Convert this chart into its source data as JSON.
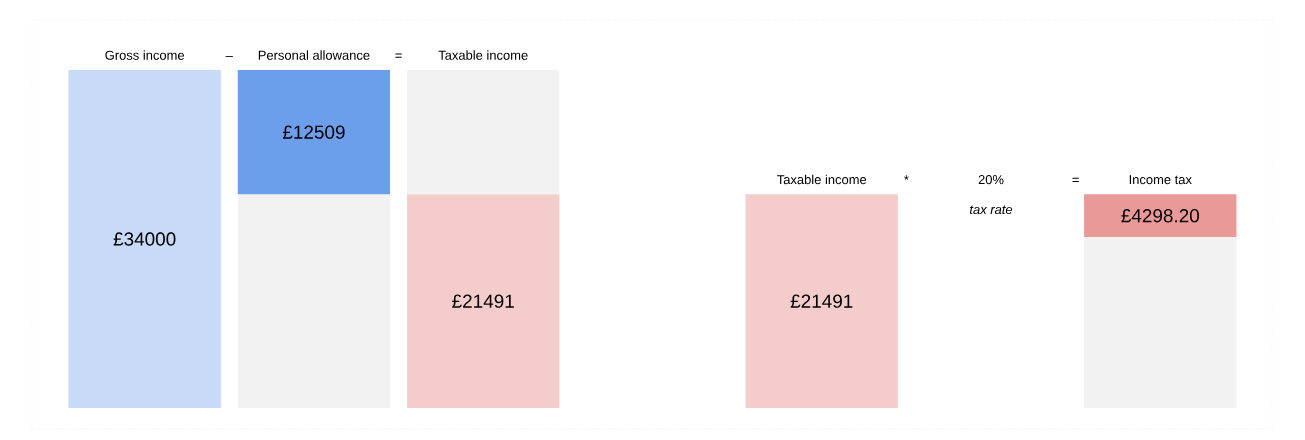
{
  "chart_data": {
    "type": "bar",
    "stacked": true,
    "categories": [
      "Gross income",
      "Personal allowance",
      "Taxable income",
      null,
      "Taxable income",
      null,
      "Income tax"
    ],
    "series": [
      {
        "colors": [
          "#c9daf8",
          "#f2f2f2",
          "#f4cccc",
          null,
          "#f4cccc",
          null,
          "#f2f2f2"
        ],
        "values": [
          34000,
          21491,
          21491,
          null,
          21491,
          null,
          17192.8
        ],
        "value_labels": [
          "£34000",
          null,
          "£21491",
          null,
          "£21491",
          null,
          null
        ]
      },
      {
        "colors": [
          null,
          "#6d9eeb",
          "#f2f2f2",
          null,
          null,
          null,
          "#ea9999"
        ],
        "values": [
          null,
          12509,
          12509,
          null,
          null,
          null,
          4298.2
        ],
        "value_labels": [
          null,
          "£12509",
          null,
          null,
          null,
          null,
          "£4298.20"
        ]
      }
    ],
    "annotations": [
      "–",
      "=",
      "*",
      "20%",
      "tax rate",
      "="
    ]
  }
}
